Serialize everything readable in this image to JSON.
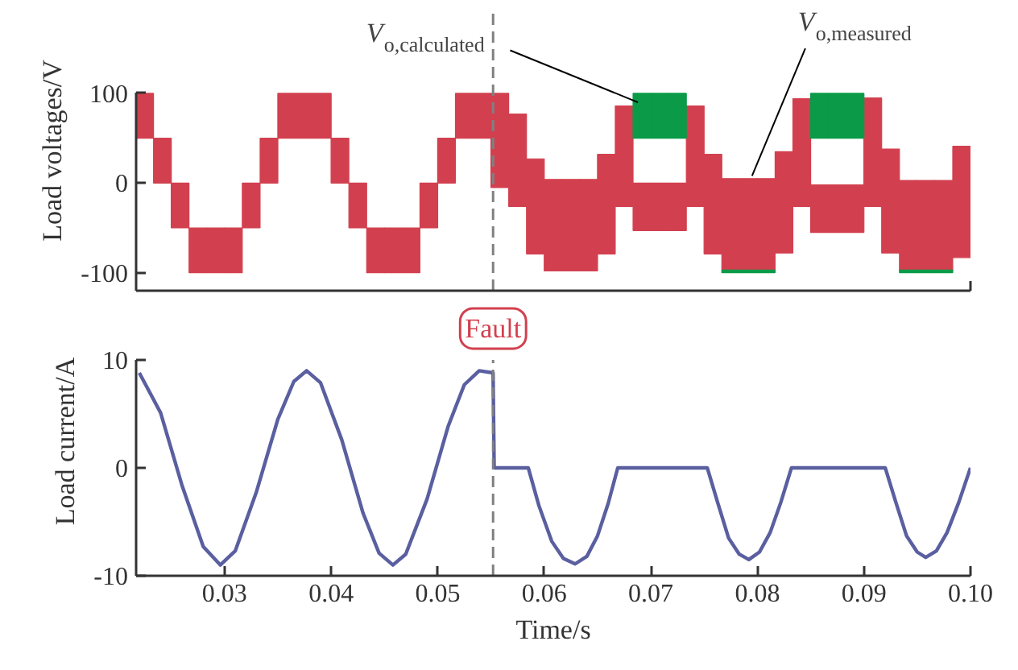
{
  "chart_data": [
    {
      "type": "bar",
      "ylabel": "Load voltages/V",
      "xlim": [
        0.0217,
        0.1
      ],
      "xticks": [
        {
          "value": 0.1,
          "label": null
        }
      ],
      "ylim": [
        -120,
        100
      ],
      "yticks": [
        -100,
        0,
        100
      ],
      "tick_labels": "y",
      "legend": false,
      "grid": false,
      "ref_lines": [
        {
          "axis": "x",
          "value": 0.0552,
          "color": "#808080",
          "line_style": "dashed"
        }
      ],
      "series": [
        {
          "name": "V$_{o,measured}$",
          "color": "#d2404f",
          "x": [
            0.0225,
            0.02417,
            0.02583,
            0.0275,
            0.02917,
            0.03083,
            0.0325,
            0.03417,
            0.03583,
            0.0375,
            0.03917,
            0.04083,
            0.0425,
            0.04417,
            0.04583,
            0.0475,
            0.04917,
            0.05083,
            0.0525,
            0.05417,
            0.05583,
            0.0575,
            0.05917,
            0.06083,
            0.0625,
            0.06417,
            0.06583,
            0.0675,
            0.06917,
            0.07083,
            0.0725,
            0.07417,
            0.07583,
            0.0775,
            0.07917,
            0.08083,
            0.0825,
            0.08417,
            0.08583,
            0.0875,
            0.08917,
            0.09083,
            0.0925,
            0.09417,
            0.09583,
            0.0975,
            0.09917
          ],
          "values": [
            50,
            50,
            50,
            50,
            50,
            50,
            50,
            50,
            50,
            50,
            50,
            50,
            50,
            50,
            50,
            50,
            50,
            50,
            50,
            50,
            105,
            103,
            106,
            102,
            102,
            102,
            111,
            112,
            53,
            53,
            53,
            112,
            111,
            103,
            103,
            103,
            113,
            120,
            53,
            53,
            53,
            121,
            116,
            101,
            101,
            101,
            124
          ],
          "base": [
            50,
            0,
            -50,
            -100,
            -100,
            -100,
            -50,
            0,
            50,
            50,
            50,
            0,
            -50,
            -100,
            -100,
            -100,
            -50,
            0,
            50,
            50,
            -5,
            -26,
            -79,
            -98,
            -98,
            -98,
            -79,
            -26,
            -53,
            -53,
            -53,
            -26,
            -79,
            -98,
            -98,
            -98,
            -78,
            -26,
            -55,
            -55,
            -55,
            -26,
            -78,
            -98,
            -98,
            -98,
            -83
          ]
        },
        {
          "name": "V$_{o,calculated}$",
          "color": "#0a9a48",
          "x": [
            0.06917,
            0.07083,
            0.0725,
            0.0775,
            0.07917,
            0.08083,
            0.08583,
            0.0875,
            0.08917,
            0.09417,
            0.09583,
            0.0975
          ],
          "values": [
            50,
            50,
            50,
            3,
            3,
            3,
            50,
            50,
            50,
            3,
            3,
            3
          ],
          "base": [
            50,
            50,
            50,
            -100,
            -100,
            -100,
            50,
            50,
            50,
            -100,
            -100,
            -100
          ]
        }
      ]
    },
    {
      "type": "line",
      "xlabel": "Time/s",
      "ylabel": "Load current/A",
      "xlim": [
        0.0217,
        0.1
      ],
      "xticks": [
        0.03,
        0.04,
        0.05,
        0.06,
        0.07,
        0.08,
        0.09,
        {
          "value": 0.1,
          "label": "0.10"
        }
      ],
      "ylim": [
        -10,
        10
      ],
      "yticks": [
        -10,
        0,
        10
      ],
      "legend": false,
      "grid": false,
      "ref_lines": [
        {
          "axis": "x",
          "value": 0.0552,
          "label": "Fault",
          "color": "#808080",
          "line_style": "dashed"
        }
      ],
      "series": [
        {
          "color": "#5a5fa0",
          "x": [
            0.022,
            0.024,
            0.026,
            0.028,
            0.0296,
            0.031,
            0.033,
            0.035,
            0.0365,
            0.0377,
            0.039,
            0.041,
            0.043,
            0.0445,
            0.0458,
            0.047,
            0.049,
            0.051,
            0.0525,
            0.0539,
            0.0552,
            0.0553,
            0.0585,
            0.0595,
            0.0607,
            0.0618,
            0.0629,
            0.064,
            0.065,
            0.066,
            0.0669,
            0.0753,
            0.0763,
            0.0773,
            0.0783,
            0.0792,
            0.0802,
            0.0812,
            0.0822,
            0.0832,
            0.092,
            0.093,
            0.094,
            0.095,
            0.0958,
            0.0968,
            0.0978,
            0.0989,
            0.1
          ],
          "values": [
            8.8,
            5.1,
            -1.6,
            -7.3,
            -9,
            -7.7,
            -2.2,
            4.5,
            8.0,
            9,
            7.9,
            2.6,
            -4.2,
            -7.9,
            -9,
            -8.0,
            -2.9,
            3.9,
            7.7,
            9,
            8.8,
            0,
            0,
            -3.5,
            -6.8,
            -8.4,
            -8.9,
            -8.2,
            -6.3,
            -3.3,
            0,
            0,
            -3.3,
            -6.5,
            -8.0,
            -8.5,
            -7.8,
            -6.0,
            -3.2,
            0,
            0,
            -3.2,
            -6.3,
            -7.8,
            -8.3,
            -7.7,
            -6.0,
            -3.2,
            0
          ]
        }
      ]
    }
  ]
}
